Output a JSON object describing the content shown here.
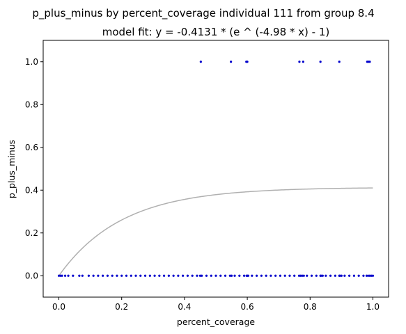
{
  "chart_data": {
    "type": "scatter",
    "title": "p_plus_minus by percent_coverage individual 111 from group 8.4",
    "subtitle": "model fit: y = -0.4131 * (e ^ (-4.98 * x) - 1)",
    "xlabel": "percent_coverage",
    "ylabel": "p_plus_minus",
    "xlim": [
      -0.05,
      1.05
    ],
    "ylim": [
      -0.1,
      1.1
    ],
    "xticks": [
      "0.0",
      "0.2",
      "0.4",
      "0.6",
      "0.8",
      "1.0"
    ],
    "yticks": [
      "0.0",
      "0.2",
      "0.4",
      "0.6",
      "0.8",
      "1.0"
    ],
    "grid": false,
    "point_color": "#0000cc",
    "fit_color": "#b0b0b0",
    "fit": {
      "a": -0.4131,
      "b": -4.98
    },
    "series": [
      {
        "values": [
          [
            0.0,
            0
          ],
          [
            0.005,
            0
          ],
          [
            0.01,
            0
          ],
          [
            0.02,
            0
          ],
          [
            0.03,
            0
          ],
          [
            0.045,
            0
          ],
          [
            0.065,
            0
          ],
          [
            0.075,
            0
          ],
          [
            0.095,
            0
          ],
          [
            0.11,
            0
          ],
          [
            0.125,
            0
          ],
          [
            0.14,
            0
          ],
          [
            0.155,
            0
          ],
          [
            0.17,
            0
          ],
          [
            0.185,
            0
          ],
          [
            0.2,
            0
          ],
          [
            0.215,
            0
          ],
          [
            0.23,
            0
          ],
          [
            0.245,
            0
          ],
          [
            0.26,
            0
          ],
          [
            0.275,
            0
          ],
          [
            0.29,
            0
          ],
          [
            0.305,
            0
          ],
          [
            0.32,
            0
          ],
          [
            0.335,
            0
          ],
          [
            0.35,
            0
          ],
          [
            0.365,
            0
          ],
          [
            0.38,
            0
          ],
          [
            0.395,
            0
          ],
          [
            0.41,
            0
          ],
          [
            0.425,
            0
          ],
          [
            0.44,
            0
          ],
          [
            0.45,
            0
          ],
          [
            0.455,
            0
          ],
          [
            0.47,
            0
          ],
          [
            0.485,
            0
          ],
          [
            0.5,
            0
          ],
          [
            0.515,
            0
          ],
          [
            0.53,
            0
          ],
          [
            0.545,
            0
          ],
          [
            0.55,
            0
          ],
          [
            0.56,
            0
          ],
          [
            0.575,
            0
          ],
          [
            0.59,
            0
          ],
          [
            0.598,
            0
          ],
          [
            0.6,
            0
          ],
          [
            0.603,
            0
          ],
          [
            0.615,
            0
          ],
          [
            0.63,
            0
          ],
          [
            0.645,
            0
          ],
          [
            0.66,
            0
          ],
          [
            0.675,
            0
          ],
          [
            0.69,
            0
          ],
          [
            0.705,
            0
          ],
          [
            0.72,
            0
          ],
          [
            0.735,
            0
          ],
          [
            0.75,
            0
          ],
          [
            0.765,
            0
          ],
          [
            0.77,
            0
          ],
          [
            0.775,
            0
          ],
          [
            0.78,
            0
          ],
          [
            0.79,
            0
          ],
          [
            0.805,
            0
          ],
          [
            0.82,
            0
          ],
          [
            0.833,
            0
          ],
          [
            0.835,
            0
          ],
          [
            0.84,
            0
          ],
          [
            0.85,
            0
          ],
          [
            0.865,
            0
          ],
          [
            0.88,
            0
          ],
          [
            0.893,
            0
          ],
          [
            0.895,
            0
          ],
          [
            0.9,
            0
          ],
          [
            0.91,
            0
          ],
          [
            0.925,
            0
          ],
          [
            0.94,
            0
          ],
          [
            0.955,
            0
          ],
          [
            0.97,
            0
          ],
          [
            0.98,
            0
          ],
          [
            0.985,
            0
          ],
          [
            0.99,
            0
          ],
          [
            0.995,
            0
          ],
          [
            1.0,
            0
          ],
          [
            0.452,
            1
          ],
          [
            0.548,
            1
          ],
          [
            0.597,
            1
          ],
          [
            0.6,
            1
          ],
          [
            0.766,
            1
          ],
          [
            0.778,
            1
          ],
          [
            0.833,
            1
          ],
          [
            0.893,
            1
          ],
          [
            0.982,
            1
          ],
          [
            0.986,
            1
          ],
          [
            0.99,
            1
          ]
        ]
      }
    ]
  }
}
